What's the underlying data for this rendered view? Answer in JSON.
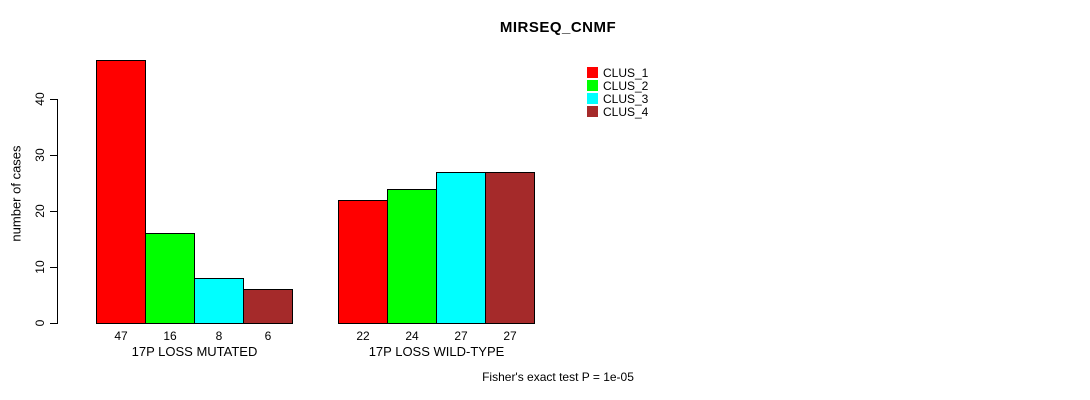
{
  "title": "MIRSEQ_CNMF",
  "ylabel": "number of cases",
  "footer": "Fisher's exact test P = 1e-05",
  "chart_data": {
    "type": "bar",
    "title": "MIRSEQ_CNMF",
    "xlabel": "",
    "ylabel": "number of cases",
    "categories": [
      "17P LOSS MUTATED",
      "17P LOSS WILD-TYPE"
    ],
    "series": [
      {
        "name": "CLUS_1",
        "color": "#ff0000",
        "values": [
          47,
          22
        ]
      },
      {
        "name": "CLUS_2",
        "color": "#00ff00",
        "values": [
          16,
          24
        ]
      },
      {
        "name": "CLUS_3",
        "color": "#00ffff",
        "values": [
          8,
          27
        ]
      },
      {
        "name": "CLUS_4",
        "color": "#a52a2a",
        "values": [
          6,
          27
        ]
      }
    ],
    "bar_value_labels": [
      [
        47,
        16,
        8,
        6
      ],
      [
        22,
        24,
        27,
        27
      ]
    ],
    "yticks": [
      0,
      10,
      20,
      30,
      40
    ],
    "ylim": [
      0,
      47
    ],
    "grid": false,
    "legend_position": "top-right",
    "annotation": "Fisher's exact test P = 1e-05"
  }
}
